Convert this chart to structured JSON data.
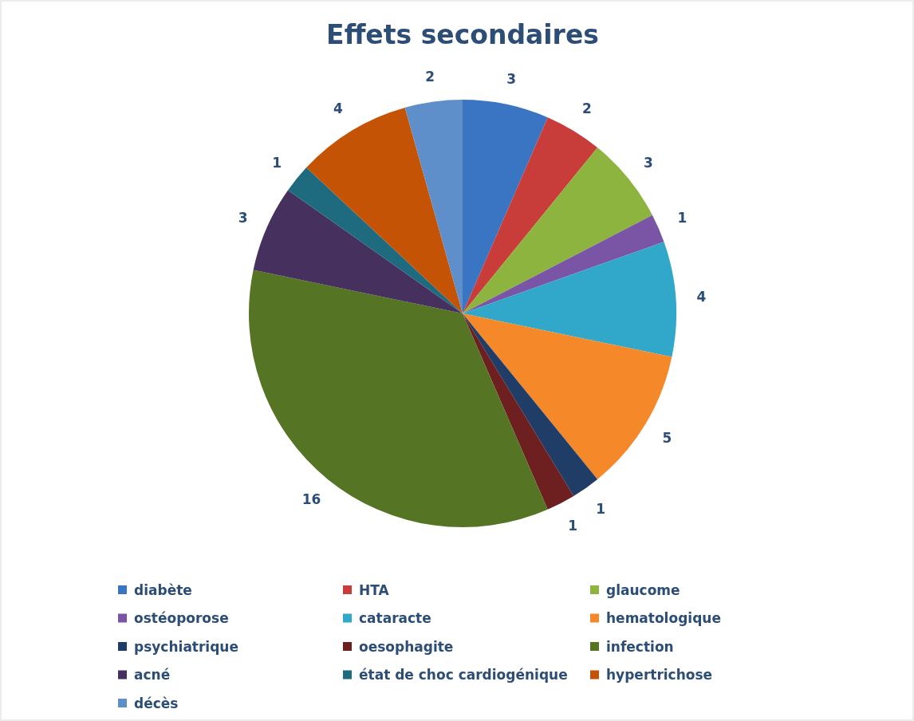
{
  "chart_data": {
    "type": "pie",
    "title": "Effets secondaires",
    "categories": [
      "diabète",
      "HTA",
      "glaucome",
      "ostéoporose",
      "cataracte",
      "hematologique",
      "psychiatrique",
      "oesophagite",
      "infection",
      "acné",
      "état de choc cardiogénique",
      "hypertrichose",
      "décès"
    ],
    "values": [
      3,
      2,
      3,
      1,
      4,
      5,
      1,
      1,
      16,
      3,
      1,
      4,
      2
    ],
    "colors": [
      "#3a75c4",
      "#c83c3a",
      "#8db43e",
      "#7a55a5",
      "#31a8c9",
      "#f5892a",
      "#1f3d66",
      "#6e1f1f",
      "#567524",
      "#45305e",
      "#1e6b80",
      "#c55306",
      "#5f8fcb"
    ],
    "data_labels": true,
    "legend": "bottom"
  }
}
